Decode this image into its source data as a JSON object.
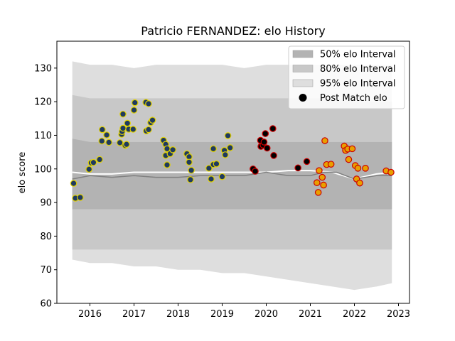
{
  "chart_data": {
    "type": "scatter",
    "title": "Patricio FERNANDEZ: elo History",
    "xlabel": "",
    "ylabel": "elo score",
    "xlim": [
      2015.25,
      2023.25
    ],
    "ylim": [
      60,
      138
    ],
    "xticks": [
      2016,
      2017,
      2018,
      2019,
      2020,
      2021,
      2022,
      2023
    ],
    "yticks": [
      60,
      70,
      80,
      90,
      100,
      110,
      120,
      130
    ],
    "legend": {
      "position": "top-right",
      "entries": [
        {
          "label": "50% elo Interval",
          "color": "#b3b3b3"
        },
        {
          "label": "80% elo Interval",
          "color": "#c8c8c8"
        },
        {
          "label": "95% elo Interval",
          "color": "#dedede"
        },
        {
          "label": "Post Match elo",
          "color": "#000000"
        }
      ]
    },
    "bands": {
      "x": [
        2015.6,
        2016.0,
        2016.5,
        2017.0,
        2017.5,
        2018.0,
        2018.5,
        2019.0,
        2019.5,
        2020.0,
        2020.5,
        2021.0,
        2021.5,
        2022.0,
        2022.5,
        2022.85
      ],
      "p95_hi": [
        132,
        131,
        131,
        130,
        131,
        131,
        131,
        131,
        130,
        131,
        131,
        131,
        131,
        131,
        131,
        131
      ],
      "p80_hi": [
        122,
        121,
        121,
        121,
        121,
        121,
        121,
        121,
        121,
        121,
        121,
        121,
        121,
        120,
        120,
        120
      ],
      "p50_hi": [
        109,
        108,
        108,
        108,
        108,
        108,
        108,
        108,
        108,
        108,
        108,
        108,
        108,
        108,
        108,
        108
      ],
      "p50_lo": [
        88,
        88,
        88,
        88,
        88,
        88,
        88,
        88,
        88,
        88,
        88,
        88,
        88,
        88,
        88,
        88
      ],
      "p80_lo": [
        76,
        76,
        76,
        76,
        76,
        76,
        76,
        76,
        76,
        76,
        76,
        76,
        76,
        76,
        76,
        76
      ],
      "p95_lo": [
        73,
        72,
        72,
        71,
        71,
        70,
        70,
        69,
        69,
        68,
        67,
        66,
        65,
        64,
        65,
        66
      ]
    },
    "median_line": {
      "x": [
        2015.6,
        2016.0,
        2016.5,
        2017.0,
        2017.5,
        2018.0,
        2018.5,
        2019.0,
        2019.5,
        2020.0,
        2020.5,
        2021.0,
        2021.3,
        2021.6,
        2022.0,
        2022.5,
        2022.85
      ],
      "y": [
        97,
        98,
        97.5,
        98,
        97.5,
        97.5,
        98,
        98,
        98,
        99,
        98,
        98,
        99,
        99,
        97,
        98,
        98
      ]
    },
    "white_line": {
      "x": [
        2015.6,
        2016.0,
        2016.5,
        2017.0,
        2017.5,
        2018.0,
        2018.5,
        2019.0,
        2019.5,
        2020.0,
        2020.5,
        2021.0,
        2021.5,
        2022.0,
        2022.5,
        2022.85
      ],
      "y": [
        99,
        98.5,
        98.5,
        99,
        99,
        99,
        99,
        99,
        99,
        99,
        99.5,
        99.5,
        99,
        97,
        98.5,
        99
      ]
    },
    "series": [
      {
        "name": "",
        "face": "#1f3a5f",
        "edge": "#e3d200",
        "points": [
          [
            2015.63,
            95.7
          ],
          [
            2015.67,
            91.3
          ],
          [
            2015.78,
            91.5
          ],
          [
            2015.98,
            99.9
          ],
          [
            2016.03,
            101.8
          ],
          [
            2016.08,
            101.9
          ],
          [
            2016.22,
            102.8
          ],
          [
            2016.27,
            108.3
          ],
          [
            2016.28,
            111.7
          ],
          [
            2016.38,
            110.1
          ],
          [
            2016.43,
            107.9
          ],
          [
            2016.68,
            107.8
          ],
          [
            2016.72,
            110.3
          ],
          [
            2016.73,
            111.1
          ],
          [
            2016.75,
            112.1
          ],
          [
            2016.75,
            116.3
          ],
          [
            2016.8,
            107.0
          ],
          [
            2016.83,
            107.3
          ],
          [
            2016.85,
            113.6
          ],
          [
            2016.88,
            111.8
          ],
          [
            2016.98,
            111.8
          ],
          [
            2017.0,
            117.5
          ],
          [
            2017.02,
            119.7
          ],
          [
            2017.28,
            111.3
          ],
          [
            2017.27,
            119.8
          ],
          [
            2017.33,
            111.7
          ],
          [
            2017.33,
            119.4
          ],
          [
            2017.38,
            113.8
          ],
          [
            2017.42,
            114.5
          ],
          [
            2017.67,
            108.5
          ],
          [
            2017.72,
            107.3
          ],
          [
            2017.72,
            104.0
          ],
          [
            2017.75,
            101.2
          ],
          [
            2017.75,
            106.0
          ],
          [
            2017.82,
            104.5
          ],
          [
            2017.88,
            105.7
          ],
          [
            2018.2,
            104.5
          ],
          [
            2018.25,
            103.6
          ],
          [
            2018.25,
            102.0
          ],
          [
            2018.28,
            96.8
          ],
          [
            2018.3,
            99.6
          ],
          [
            2018.7,
            100.2
          ],
          [
            2018.75,
            97.0
          ],
          [
            2018.8,
            101.3
          ],
          [
            2018.8,
            106.0
          ],
          [
            2018.87,
            101.5
          ],
          [
            2019.0,
            97.7
          ],
          [
            2019.05,
            105.5
          ],
          [
            2019.07,
            104.2
          ],
          [
            2019.13,
            109.9
          ],
          [
            2019.18,
            106.3
          ]
        ]
      },
      {
        "name": "",
        "face": "#000000",
        "edge": "#cc0000",
        "points": [
          [
            2019.7,
            100.0
          ],
          [
            2019.75,
            99.3
          ],
          [
            2019.87,
            108.5
          ],
          [
            2019.88,
            106.7
          ],
          [
            2019.93,
            107.1
          ],
          [
            2019.95,
            108.0
          ],
          [
            2019.98,
            110.5
          ],
          [
            2020.02,
            106.2
          ],
          [
            2020.15,
            112.0
          ],
          [
            2020.17,
            104.0
          ],
          [
            2020.72,
            100.3
          ],
          [
            2020.92,
            102.2
          ]
        ]
      },
      {
        "name": "",
        "face": "#e8a000",
        "edge": "#cc0000",
        "points": [
          [
            2021.15,
            95.9
          ],
          [
            2021.18,
            93.0
          ],
          [
            2021.2,
            99.5
          ],
          [
            2021.27,
            97.5
          ],
          [
            2021.3,
            95.2
          ],
          [
            2021.33,
            108.4
          ],
          [
            2021.37,
            101.3
          ],
          [
            2021.47,
            101.4
          ],
          [
            2021.77,
            106.8
          ],
          [
            2021.8,
            105.5
          ],
          [
            2021.85,
            105.9
          ],
          [
            2021.87,
            102.8
          ],
          [
            2021.95,
            106.0
          ],
          [
            2022.02,
            101.0
          ],
          [
            2022.05,
            97.0
          ],
          [
            2022.08,
            100.2
          ],
          [
            2022.12,
            95.8
          ],
          [
            2022.25,
            100.2
          ],
          [
            2022.72,
            99.4
          ],
          [
            2022.83,
            99.0
          ]
        ]
      }
    ]
  }
}
